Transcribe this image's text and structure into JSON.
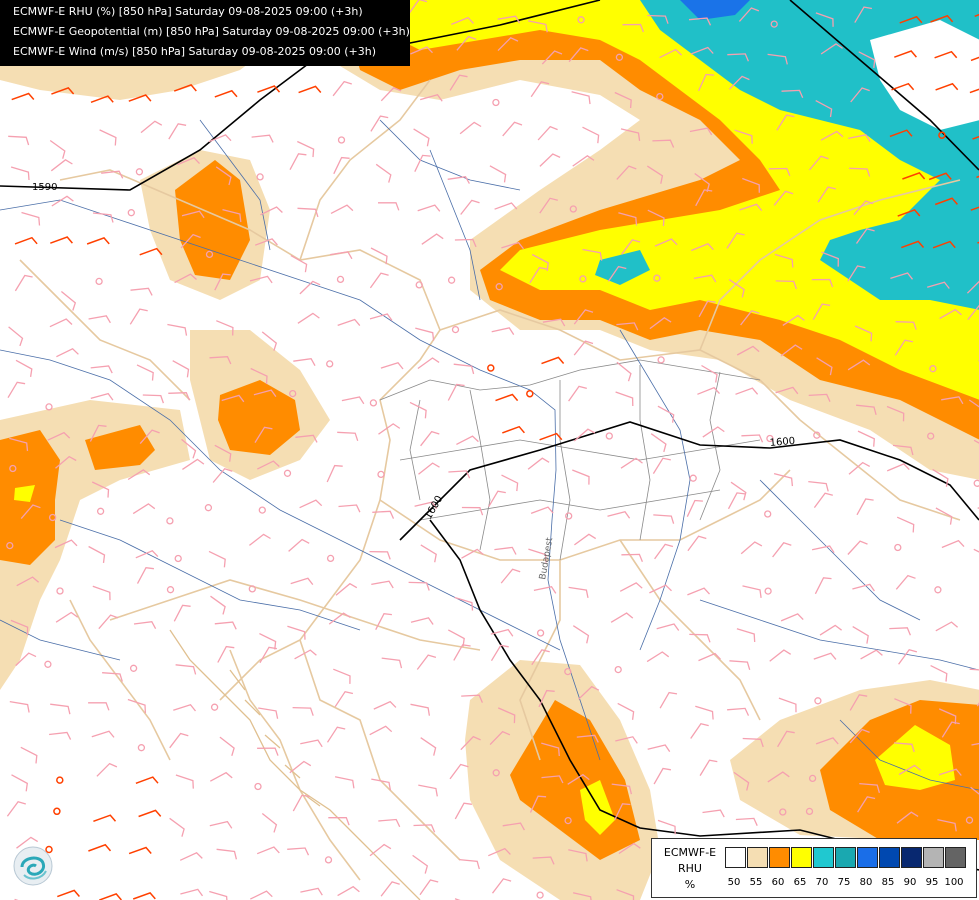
{
  "header": {
    "lines": [
      "ECMWF-E RHU (%) [850 hPa] Saturday 09-08-2025 09:00 (+3h)",
      "ECMWF-E Geopotential (m) [850 hPa] Saturday 09-08-2025 09:00 (+3h)",
      "ECMWF-E Wind (m/s) [850 hPa] Saturday 09-08-2025 09:00 (+3h)"
    ]
  },
  "map": {
    "contour_labels": [
      "1590",
      "1600",
      "1600"
    ],
    "city_label": "Budapest",
    "fill_colors": {
      "c50": "#f5deb3",
      "c60": "#ff8c00",
      "c65": "#ffff00",
      "c70": "#20c0c8",
      "c80": "#1a73e8"
    },
    "border_color": "#e6c9a0",
    "river_color": "#4a6ea8",
    "wind_barb_color": "#f5a0b0",
    "wind_barb_strong_color": "#ff4000"
  },
  "legend": {
    "title_lines": [
      "ECMWF-E",
      "RHU",
      "%"
    ],
    "swatch_colors": [
      "#ffffff",
      "#f5deb3",
      "#ff8c00",
      "#ffff00",
      "#20c8d0",
      "#1aa8b0",
      "#1a6ee8",
      "#0048b0",
      "#082870",
      "#b4b4b4",
      "#646464"
    ],
    "ticks": [
      "50",
      "55",
      "60",
      "65",
      "70",
      "75",
      "80",
      "85",
      "90",
      "95",
      "100"
    ]
  },
  "logo": {
    "icon": "ecmwf-swirl-logo"
  }
}
